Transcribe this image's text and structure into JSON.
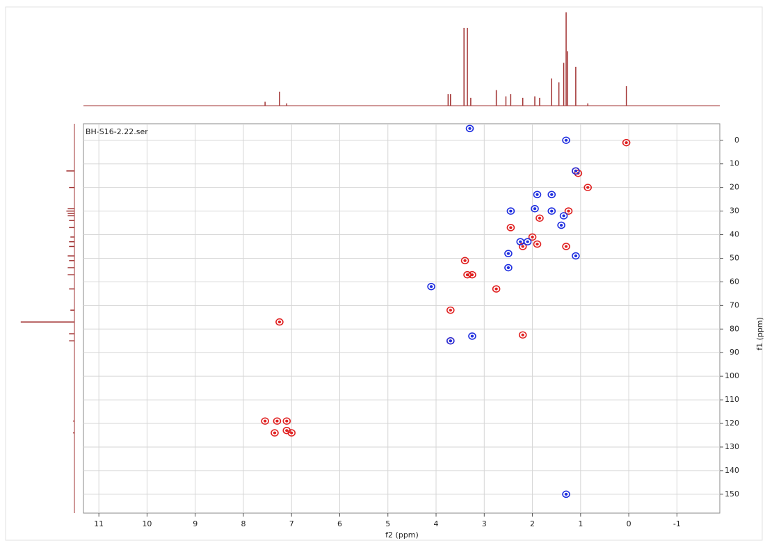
{
  "chart_data": {
    "type": "scatter",
    "title": "BH-S16-2.22.ser",
    "x_label": "f2 (ppm)",
    "y_label": "f1 (ppm)",
    "xlim": [
      11.32,
      -1.89
    ],
    "ylim": [
      -7,
      158
    ],
    "xticks": [
      11,
      10,
      9,
      8,
      7,
      6,
      5,
      4,
      3,
      2,
      1,
      0,
      -1
    ],
    "yticks": [
      0,
      10,
      20,
      30,
      40,
      50,
      60,
      70,
      80,
      90,
      100,
      110,
      120,
      130,
      140,
      150
    ],
    "y_axis_side": "right",
    "grid": true,
    "series": [
      {
        "color": "#e02020",
        "x": [
          7.55,
          7.3,
          7.1,
          7.35,
          7.1,
          7.0,
          7.25,
          3.7,
          3.7,
          3.4,
          3.35,
          3.25,
          2.75,
          2.45,
          2.2,
          2.0,
          1.9,
          1.85,
          1.25,
          0.05,
          0.85,
          1.1,
          2.2,
          1.3,
          1.05
        ],
        "values": [
          119,
          119,
          119,
          124,
          123,
          124,
          77,
          72,
          85,
          51,
          57,
          57,
          63,
          37,
          45,
          41,
          44,
          33,
          30,
          1,
          20,
          13,
          82.5,
          45,
          14
        ]
      },
      {
        "color": "#2030e0",
        "x": [
          3.3,
          4.1,
          3.25,
          3.7,
          2.5,
          2.5,
          1.9,
          1.6,
          2.1,
          1.95,
          1.6,
          2.25,
          1.3,
          1.3,
          1.1,
          1.1,
          1.35,
          2.45,
          1.4
        ],
        "values": [
          -5,
          62,
          83,
          85,
          48,
          54,
          23,
          23,
          43,
          29,
          30,
          43,
          0,
          150,
          13,
          49,
          32,
          30,
          36
        ]
      }
    ],
    "projection_top": {
      "color": "#a03030",
      "lim": [
        0,
        125
      ],
      "x": [
        7.55,
        7.25,
        7.1,
        3.75,
        3.7,
        3.42,
        3.35,
        3.28,
        2.75,
        2.55,
        2.45,
        2.2,
        1.95,
        1.85,
        1.6,
        1.45,
        1.35,
        1.3,
        1.27,
        1.1,
        0.85,
        0.05
      ],
      "values": [
        5,
        18,
        3,
        15,
        15,
        100,
        100,
        10,
        20,
        12,
        15,
        10,
        12,
        10,
        35,
        30,
        55,
        120,
        70,
        50,
        3,
        25
      ]
    },
    "projection_left": {
      "color": "#a03030",
      "lim": [
        0,
        85
      ],
      "y": [
        13,
        20,
        29,
        30,
        31,
        32,
        34,
        37,
        41,
        43,
        45,
        49,
        51,
        54,
        57,
        63,
        72,
        77,
        82,
        85,
        119,
        124
      ],
      "values": [
        12,
        8,
        10,
        12,
        10,
        10,
        8,
        8,
        6,
        8,
        8,
        10,
        8,
        10,
        10,
        8,
        6,
        80,
        8,
        8,
        2,
        2
      ]
    }
  }
}
